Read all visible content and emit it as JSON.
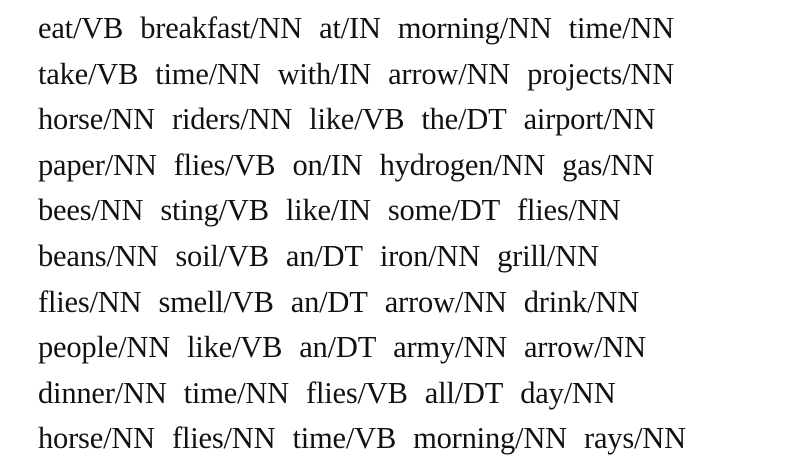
{
  "lines": [
    [
      "eat/VB",
      "breakfast/NN",
      "at/IN",
      "morning/NN",
      "time/NN"
    ],
    [
      "take/VB",
      "time/NN",
      "with/IN",
      "arrow/NN",
      "projects/NN"
    ],
    [
      "horse/NN",
      "riders/NN",
      "like/VB",
      "the/DT",
      "airport/NN"
    ],
    [
      "paper/NN",
      "flies/VB",
      "on/IN",
      "hydrogen/NN",
      "gas/NN"
    ],
    [
      "bees/NN",
      "sting/VB",
      "like/IN",
      "some/DT",
      "flies/NN"
    ],
    [
      "beans/NN",
      "soil/VB",
      "an/DT",
      "iron/NN",
      "grill/NN"
    ],
    [
      "flies/NN",
      "smell/VB",
      "an/DT",
      "arrow/NN",
      "drink/NN"
    ],
    [
      "people/NN",
      "like/VB",
      "an/DT",
      "army/NN",
      "arrow/NN"
    ],
    [
      "dinner/NN",
      "time/NN",
      "flies/VB",
      "all/DT",
      "day/NN"
    ],
    [
      "horse/NN",
      "flies/NN",
      "time/VB",
      "morning/NN",
      "rays/NN"
    ]
  ]
}
